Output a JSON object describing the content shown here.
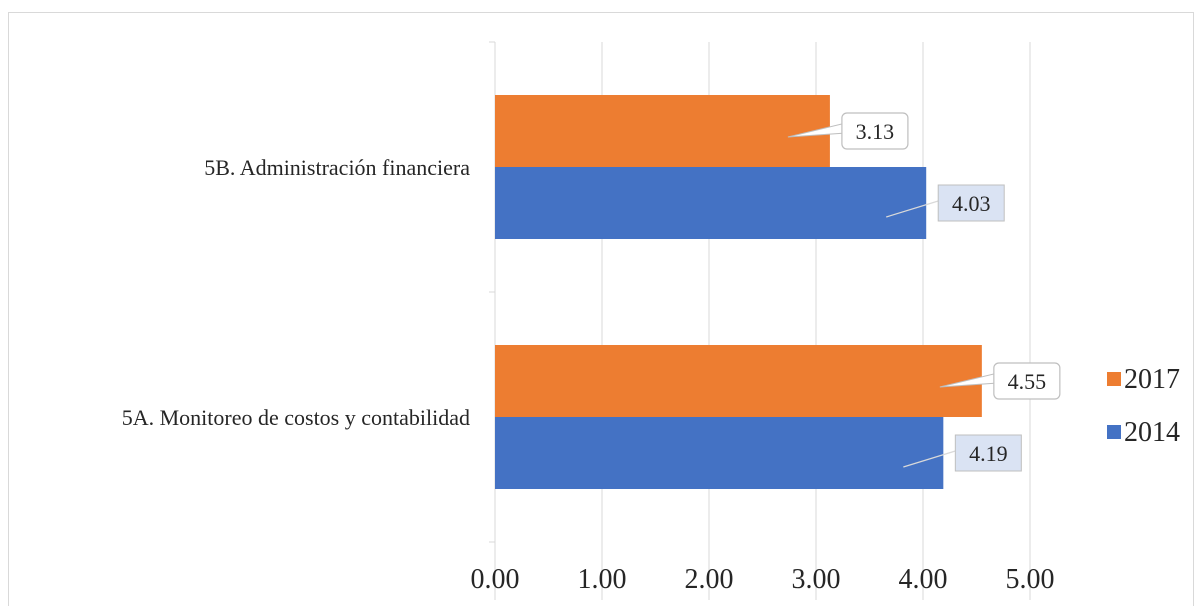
{
  "chart_data": {
    "type": "bar",
    "orientation": "horizontal",
    "categories": [
      "5B. Administración financiera",
      "5A. Monitoreo de costos y contabilidad"
    ],
    "series": [
      {
        "name": "2017",
        "color": "#ED7D31",
        "values": [
          3.13,
          4.55
        ],
        "labels": [
          "3.13",
          "4.55"
        ],
        "label_style": "callout"
      },
      {
        "name": "2014",
        "color": "#4472C4",
        "values": [
          4.03,
          4.19
        ],
        "labels": [
          "4.03",
          "4.19"
        ],
        "label_style": "box"
      }
    ],
    "xlim": [
      0,
      5
    ],
    "x_ticks": [
      "0.00",
      "1.00",
      "2.00",
      "3.00",
      "4.00",
      "5.00"
    ],
    "grid": true,
    "legend": {
      "position": "right",
      "entries": [
        "2017",
        "2014"
      ]
    }
  }
}
